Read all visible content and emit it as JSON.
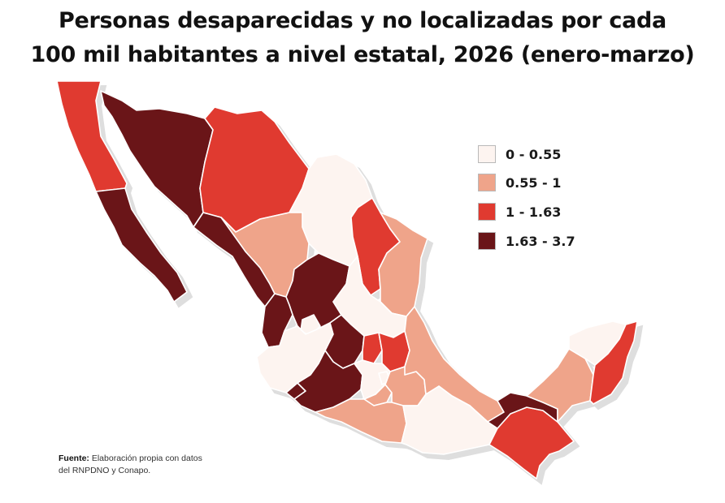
{
  "title": {
    "line1": "Personas desaparecidas y no localizadas por cada",
    "line2": "100 mil habitantes a nivel estatal, 2026 (enero-marzo)"
  },
  "legend": [
    {
      "label": "0 - 0.55",
      "color": "#fdf4f0"
    },
    {
      "label": "0.55 - 1",
      "color": "#efa48a"
    },
    {
      "label": "1 - 1.63",
      "color": "#e03a30"
    },
    {
      "label": "1.63 - 3.7",
      "color": "#6a1518"
    }
  ],
  "border_color": "#ffffff",
  "shadow_color": "#dedede",
  "source": {
    "label": "Fuente:",
    "text_line1": " Elaboración propia con datos",
    "text_line2": "del RNPDNO y Conapo."
  },
  "regions": [
    {
      "id": "baja-california",
      "class": 2
    },
    {
      "id": "baja-california-sur",
      "class": 3
    },
    {
      "id": "sonora",
      "class": 3
    },
    {
      "id": "chihuahua",
      "class": 2
    },
    {
      "id": "coahuila",
      "class": 0
    },
    {
      "id": "nuevo-leon",
      "class": 2
    },
    {
      "id": "tamaulipas",
      "class": 1
    },
    {
      "id": "sinaloa",
      "class": 3
    },
    {
      "id": "durango",
      "class": 1
    },
    {
      "id": "zacatecas",
      "class": 3
    },
    {
      "id": "san-luis-potosi",
      "class": 0
    },
    {
      "id": "nayarit",
      "class": 3
    },
    {
      "id": "aguascalientes",
      "class": 0
    },
    {
      "id": "jalisco",
      "class": 0
    },
    {
      "id": "guanajuato",
      "class": 3
    },
    {
      "id": "queretaro",
      "class": 2
    },
    {
      "id": "hidalgo",
      "class": 2
    },
    {
      "id": "colima",
      "class": 3
    },
    {
      "id": "michoacan",
      "class": 3
    },
    {
      "id": "estado-de-mexico",
      "class": 0
    },
    {
      "id": "ciudad-de-mexico",
      "class": 0
    },
    {
      "id": "morelos",
      "class": 1
    },
    {
      "id": "tlaxcala",
      "class": 0
    },
    {
      "id": "puebla",
      "class": 1
    },
    {
      "id": "veracruz",
      "class": 1
    },
    {
      "id": "guerrero",
      "class": 1
    },
    {
      "id": "oaxaca",
      "class": 0
    },
    {
      "id": "chiapas",
      "class": 2
    },
    {
      "id": "tabasco",
      "class": 3
    },
    {
      "id": "campeche",
      "class": 1
    },
    {
      "id": "yucatan",
      "class": 0
    },
    {
      "id": "quintana-roo",
      "class": 2
    }
  ]
}
